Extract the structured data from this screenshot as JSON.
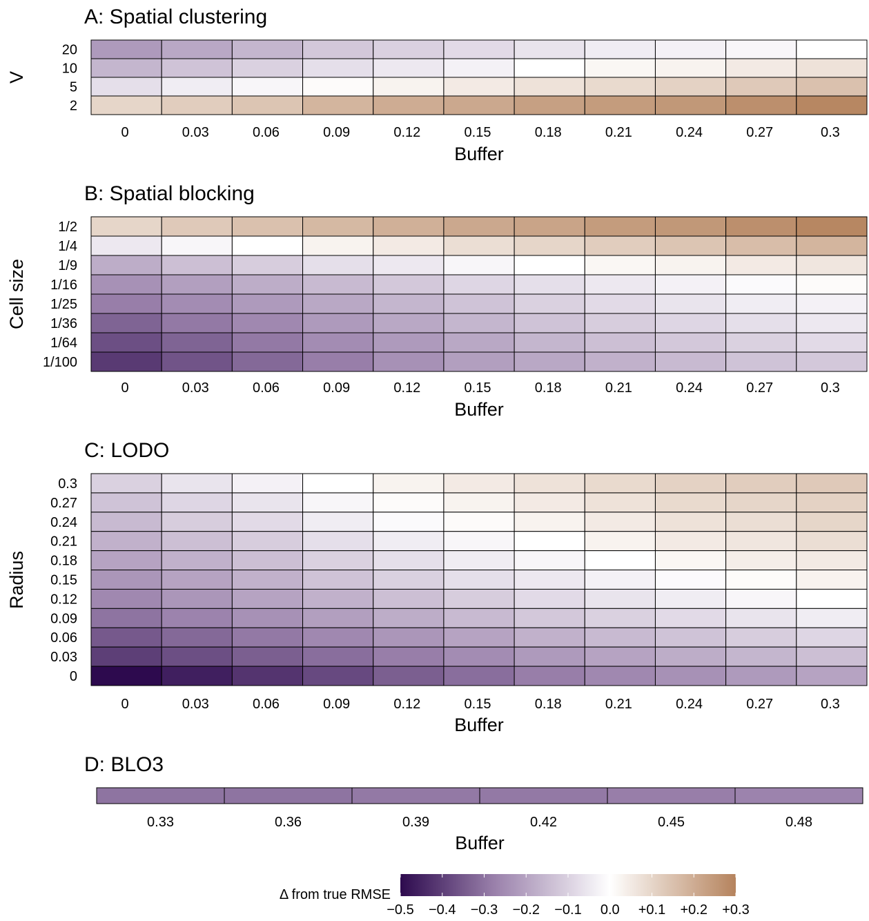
{
  "chart_data": [
    {
      "type": "heatmap",
      "title": "A: Spatial clustering",
      "xlabel": "Buffer",
      "ylabel": "V",
      "x": [
        "0",
        "0.03",
        "0.06",
        "0.09",
        "0.12",
        "0.15",
        "0.18",
        "0.21",
        "0.24",
        "0.27",
        "0.3"
      ],
      "y": [
        "20",
        "10",
        "5",
        "2"
      ],
      "values": [
        [
          -0.22,
          -0.19,
          -0.16,
          -0.12,
          -0.1,
          -0.08,
          -0.06,
          -0.04,
          -0.03,
          -0.02,
          0.0
        ],
        [
          -0.16,
          -0.13,
          -0.1,
          -0.07,
          -0.05,
          -0.03,
          0.0,
          0.02,
          0.03,
          0.05,
          0.07
        ],
        [
          -0.07,
          -0.04,
          -0.02,
          0.01,
          0.03,
          0.05,
          0.07,
          0.09,
          0.11,
          0.13,
          0.15
        ],
        [
          0.1,
          0.12,
          0.14,
          0.18,
          0.2,
          0.21,
          0.23,
          0.24,
          0.25,
          0.27,
          0.29
        ]
      ]
    },
    {
      "type": "heatmap",
      "title": "B: Spatial blocking",
      "xlabel": "Buffer",
      "ylabel": "Cell size",
      "x": [
        "0",
        "0.03",
        "0.06",
        "0.09",
        "0.12",
        "0.15",
        "0.18",
        "0.21",
        "0.24",
        "0.27",
        "0.3"
      ],
      "y": [
        "1/2",
        "1/4",
        "1/9",
        "1/16",
        "1/25",
        "1/36",
        "1/64",
        "1/100"
      ],
      "values": [
        [
          0.1,
          0.13,
          0.15,
          0.17,
          0.19,
          0.21,
          0.22,
          0.24,
          0.25,
          0.27,
          0.29
        ],
        [
          -0.05,
          -0.02,
          0.0,
          0.03,
          0.05,
          0.08,
          0.1,
          0.12,
          0.14,
          0.16,
          0.18
        ],
        [
          -0.18,
          -0.14,
          -0.11,
          -0.07,
          -0.05,
          -0.02,
          0.0,
          0.02,
          0.03,
          0.05,
          0.06
        ],
        [
          -0.24,
          -0.21,
          -0.18,
          -0.15,
          -0.12,
          -0.09,
          -0.07,
          -0.05,
          -0.03,
          -0.01,
          0.01
        ],
        [
          -0.28,
          -0.25,
          -0.22,
          -0.19,
          -0.16,
          -0.13,
          -0.1,
          -0.08,
          -0.06,
          -0.04,
          -0.03
        ],
        [
          -0.33,
          -0.29,
          -0.26,
          -0.22,
          -0.19,
          -0.16,
          -0.13,
          -0.11,
          -0.09,
          -0.07,
          -0.05
        ],
        [
          -0.37,
          -0.33,
          -0.29,
          -0.25,
          -0.22,
          -0.19,
          -0.16,
          -0.14,
          -0.12,
          -0.1,
          -0.08
        ],
        [
          -0.41,
          -0.36,
          -0.32,
          -0.28,
          -0.24,
          -0.21,
          -0.19,
          -0.17,
          -0.15,
          -0.13,
          -0.12
        ]
      ]
    },
    {
      "type": "heatmap",
      "title": "C: LODO",
      "xlabel": "Buffer",
      "ylabel": "Radius",
      "x": [
        "0",
        "0.03",
        "0.06",
        "0.09",
        "0.12",
        "0.15",
        "0.18",
        "0.21",
        "0.24",
        "0.27",
        "0.3"
      ],
      "y": [
        "0.3",
        "0.27",
        "0.24",
        "0.21",
        "0.18",
        "0.15",
        "0.12",
        "0.09",
        "0.06",
        "0.03",
        "0"
      ],
      "values": [
        [
          -0.1,
          -0.06,
          -0.03,
          0.0,
          0.03,
          0.05,
          0.07,
          0.09,
          0.11,
          0.12,
          0.13
        ],
        [
          -0.13,
          -0.09,
          -0.06,
          -0.02,
          0.01,
          0.03,
          0.05,
          0.07,
          0.09,
          0.1,
          0.11
        ],
        [
          -0.15,
          -0.11,
          -0.08,
          -0.04,
          -0.01,
          0.01,
          0.03,
          0.05,
          0.07,
          0.08,
          0.1
        ],
        [
          -0.17,
          -0.14,
          -0.11,
          -0.07,
          -0.04,
          -0.02,
          0.0,
          0.03,
          0.05,
          0.06,
          0.08
        ],
        [
          -0.2,
          -0.17,
          -0.14,
          -0.1,
          -0.07,
          -0.04,
          -0.02,
          0.0,
          0.02,
          0.04,
          0.05
        ],
        [
          -0.23,
          -0.2,
          -0.17,
          -0.13,
          -0.1,
          -0.07,
          -0.05,
          -0.03,
          -0.01,
          0.01,
          0.03
        ],
        [
          -0.26,
          -0.23,
          -0.2,
          -0.17,
          -0.14,
          -0.11,
          -0.08,
          -0.06,
          -0.04,
          -0.02,
          0.0
        ],
        [
          -0.3,
          -0.27,
          -0.24,
          -0.21,
          -0.18,
          -0.15,
          -0.12,
          -0.1,
          -0.08,
          -0.06,
          -0.04
        ],
        [
          -0.35,
          -0.32,
          -0.29,
          -0.26,
          -0.23,
          -0.2,
          -0.17,
          -0.15,
          -0.13,
          -0.11,
          -0.09
        ],
        [
          -0.4,
          -0.37,
          -0.34,
          -0.31,
          -0.28,
          -0.25,
          -0.22,
          -0.2,
          -0.18,
          -0.16,
          -0.14
        ],
        [
          -0.5,
          -0.46,
          -0.42,
          -0.38,
          -0.34,
          -0.31,
          -0.28,
          -0.26,
          -0.24,
          -0.22,
          -0.2
        ]
      ]
    },
    {
      "type": "heatmap",
      "title": "D: BLO3",
      "xlabel": "Buffer",
      "ylabel": "",
      "x": [
        "0.33",
        "0.36",
        "0.39",
        "0.42",
        "0.45",
        "0.48"
      ],
      "y": [
        ""
      ],
      "values": [
        [
          -0.3,
          -0.3,
          -0.29,
          -0.29,
          -0.28,
          -0.27
        ]
      ]
    }
  ],
  "legend": {
    "title": "Δ  from true RMSE",
    "min": -0.5,
    "max": 0.3,
    "ticks": [
      "−0.5",
      "−0.4",
      "−0.3",
      "−0.2",
      "−0.1",
      "0.0",
      "+0.1",
      "+0.2",
      "+0.3"
    ],
    "tick_values": [
      -0.5,
      -0.4,
      -0.3,
      -0.2,
      -0.1,
      0.0,
      0.1,
      0.2,
      0.3
    ],
    "colors": {
      "low": "#2d0a4e",
      "mid": "#ffffff",
      "high": "#b5835d"
    }
  }
}
